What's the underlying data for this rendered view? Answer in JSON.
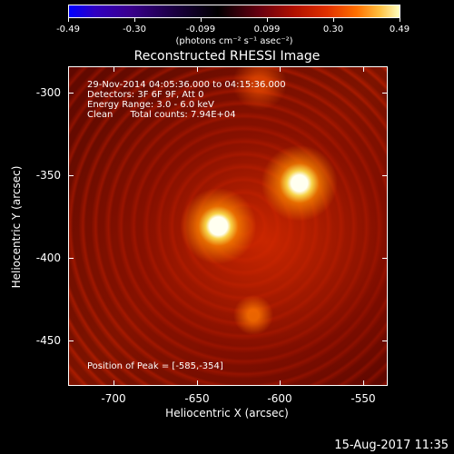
{
  "colorbar": {
    "ticks": [
      "-0.49",
      "-0.30",
      "-0.099",
      "0.099",
      "0.30",
      "0.49"
    ],
    "units": "(photons cm⁻² s⁻¹ asec⁻²)"
  },
  "title": "Reconstructed RHESSI Image",
  "info": {
    "line1": "29-Nov-2014 04:05:36.000 to 04:15:36.000",
    "line2": "Detectors: 3F 6F 9F, Att 0",
    "line3": "Energy Range: 3.0 - 6.0 keV",
    "line4": "Clean      Total counts: 7.94E+04",
    "peak": "Position of Peak = [-585,-354]"
  },
  "axes": {
    "xlabel": "Heliocentric X (arcsec)",
    "ylabel": "Heliocentric Y (arcsec)",
    "xticks": [
      "-700",
      "-650",
      "-600",
      "-550"
    ],
    "yticks": [
      "-300",
      "-350",
      "-400",
      "-450"
    ]
  },
  "chart_data": {
    "type": "heatmap",
    "title": "Reconstructed RHESSI Image",
    "xlabel": "Heliocentric X (arcsec)",
    "ylabel": "Heliocentric Y (arcsec)",
    "xlim": [
      -727,
      -535
    ],
    "ylim": [
      -478,
      -286
    ],
    "colorbar_range": [
      -0.49,
      0.49
    ],
    "sources": [
      {
        "x": -585,
        "y": -354
      },
      {
        "x": -637,
        "y": -382
      },
      {
        "x": -615,
        "y": -437
      }
    ],
    "peak": [
      -585,
      -354
    ]
  },
  "timestamp": "15-Aug-2017 11:35"
}
